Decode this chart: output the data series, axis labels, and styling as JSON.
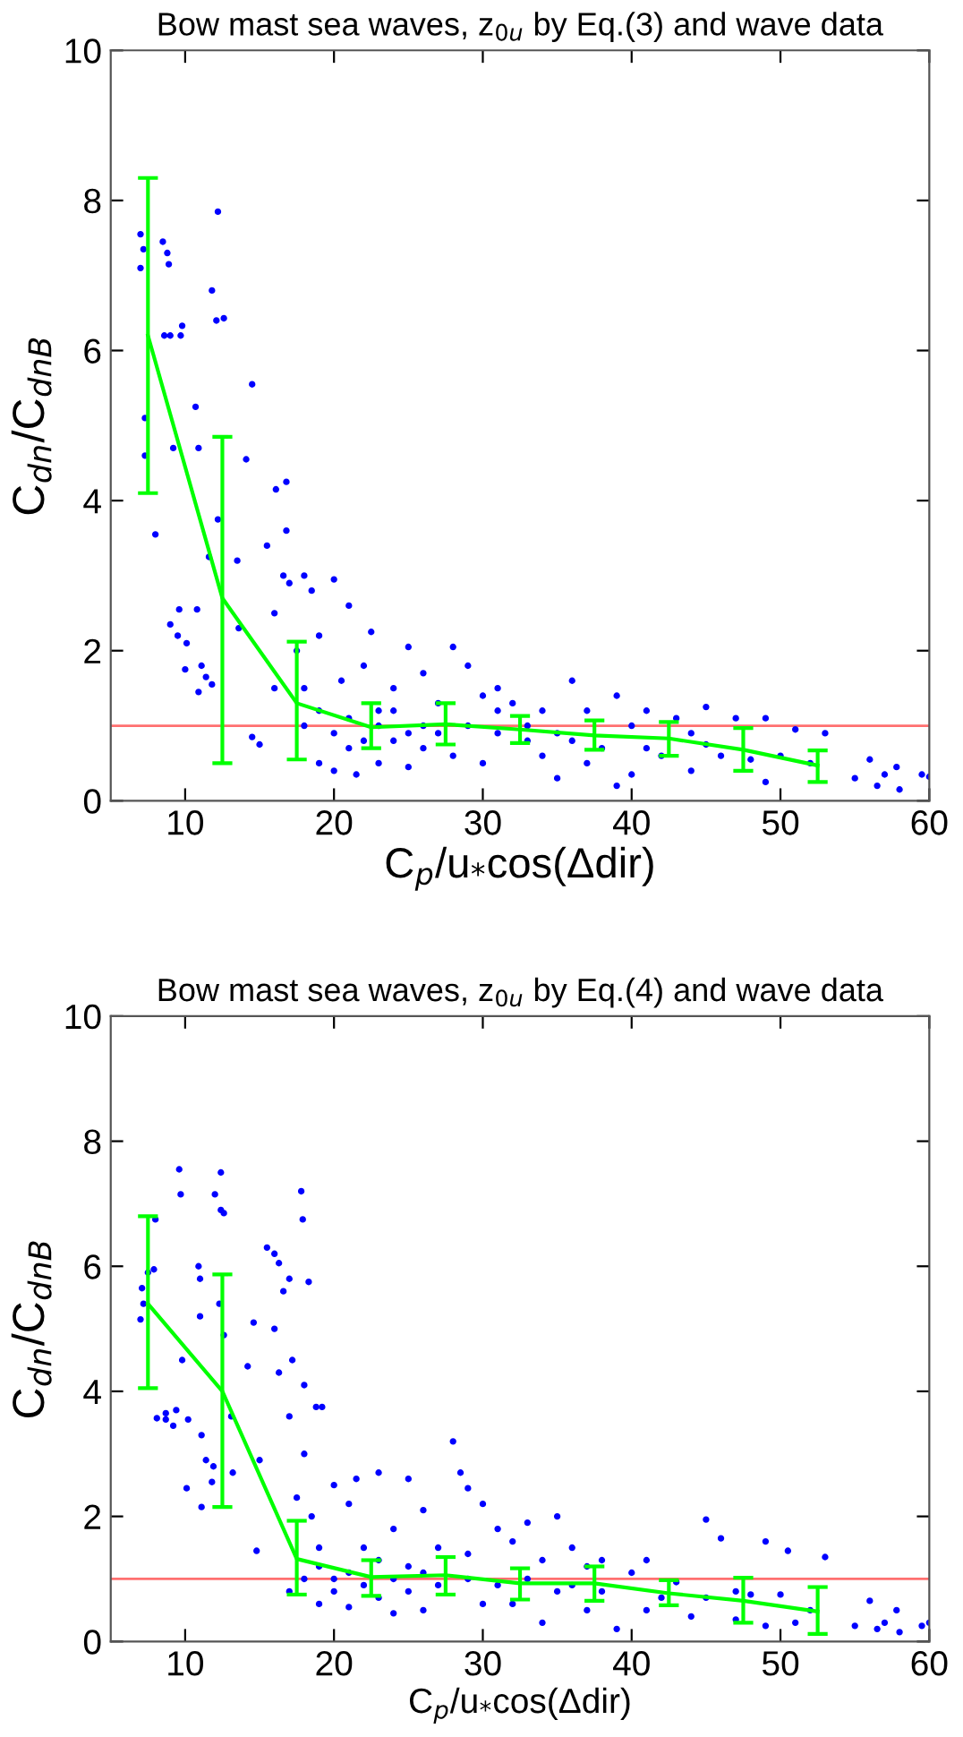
{
  "chart_data": [
    {
      "type": "scatter",
      "title": "Bow mast sea waves, z$_{0u}$ by Eq.(3) and wave data",
      "xlabel": "C$_{p}$/u$_{*}$cos(Δdir)",
      "ylabel": "C$_{dn}$/C$_{dnB}$",
      "xlim": [
        5,
        60
      ],
      "ylim": [
        0,
        10
      ],
      "xticks": [
        10,
        20,
        30,
        40,
        50,
        60
      ],
      "yticks": [
        0,
        2,
        4,
        6,
        8,
        10
      ],
      "grid": false,
      "ref_lines": [
        {
          "axis": "y",
          "value": 1,
          "color": "#ff7070"
        }
      ],
      "series": [
        {
          "color": "#0000ff",
          "marker": "circle",
          "x": [
            7.0,
            7.2,
            7.0,
            7.3,
            7.3,
            8.0,
            8.5,
            8.8,
            8.9,
            8.6,
            9.0,
            9.7,
            9.8,
            9.2,
            9.0,
            9.6,
            9.5,
            10.1,
            10.0,
            10.7,
            10.9,
            10.8,
            10.9,
            11.1,
            11.4,
            11.8,
            11.8,
            12.1,
            12.2,
            12.6,
            11.6,
            12.2,
            13.5,
            14.1,
            14.5,
            13.6,
            14.5,
            15,
            15.5,
            16.1,
            16.8,
            16.8,
            16.6,
            16,
            16,
            17,
            17.5,
            18,
            18,
            18.5,
            19,
            19,
            20,
            20,
            20.5,
            21,
            21,
            21.5,
            22,
            22.5,
            23,
            23,
            24,
            24,
            25,
            25,
            26,
            26,
            27,
            28,
            28,
            29,
            30,
            30,
            31,
            31,
            32,
            33,
            34,
            35,
            35,
            36,
            37,
            38,
            39,
            39,
            40,
            40,
            41,
            42,
            43,
            44,
            45,
            45,
            46,
            47,
            48,
            49,
            49,
            50,
            51,
            52,
            53,
            55,
            56,
            56.5,
            57,
            57.8,
            58,
            59.5,
            60,
            18,
            19,
            20,
            21,
            22,
            23,
            24,
            25,
            26,
            27,
            29,
            31,
            33,
            34,
            36,
            37,
            41,
            44
          ],
          "values": [
            7.55,
            7.35,
            7.1,
            5.1,
            4.6,
            3.55,
            7.45,
            7.3,
            7.15,
            6.2,
            6.2,
            6.2,
            6.33,
            4.7,
            2.35,
            2.55,
            2.2,
            2.1,
            1.75,
            5.25,
            4.7,
            2.55,
            1.45,
            1.8,
            1.65,
            1.55,
            6.8,
            6.4,
            7.85,
            6.43,
            3.25,
            3.75,
            3.2,
            4.55,
            5.55,
            2.3,
            0.85,
            0.75,
            3.4,
            4.15,
            4.25,
            3.6,
            3.0,
            2.5,
            1.5,
            2.9,
            2.0,
            3.0,
            1.5,
            2.8,
            2.2,
            0.5,
            2.95,
            0.4,
            1.6,
            2.6,
            0.7,
            0.35,
            1.8,
            2.25,
            1.2,
            0.5,
            1.5,
            0.8,
            2.05,
            0.45,
            1.7,
            1.0,
            1.3,
            2.05,
            0.6,
            1.8,
            1.4,
            0.5,
            1.5,
            0.9,
            1.3,
            0.8,
            1.2,
            0.3,
            0.9,
            1.6,
            1.2,
            0.7,
            1.4,
            0.2,
            0.35,
            1.0,
            1.2,
            0.6,
            1.1,
            0.9,
            1.25,
            0.75,
            0.6,
            1.1,
            0.55,
            1.1,
            0.25,
            0.6,
            0.95,
            0.5,
            0.9,
            0.3,
            0.55,
            0.2,
            0.35,
            0.45,
            0.15,
            0.35,
            0.32,
            1.0,
            1.2,
            0.9,
            1.1,
            0.8,
            1.0,
            1.2,
            0.9,
            0.7,
            0.9,
            1.0,
            1.2,
            1.0,
            0.6,
            0.8,
            0.5,
            0.7,
            0.4
          ]
        },
        {
          "type": "line",
          "color": "#00ff00",
          "marker": "none",
          "line_style": "solid",
          "x": [
            7.5,
            12.5,
            17.5,
            22.5,
            27.5,
            32.5,
            37.5,
            42.5,
            47.5,
            52.5
          ],
          "values": [
            6.2,
            2.7,
            1.3,
            0.98,
            1.02,
            0.95,
            0.87,
            0.83,
            0.68,
            0.47
          ],
          "errors": [
            [
              4.1,
              8.3
            ],
            [
              0.5,
              4.85
            ],
            [
              0.55,
              2.12
            ],
            [
              0.7,
              1.3
            ],
            [
              0.75,
              1.3
            ],
            [
              0.77,
              1.13
            ],
            [
              0.68,
              1.07
            ],
            [
              0.6,
              1.05
            ],
            [
              0.4,
              0.97
            ],
            [
              0.25,
              0.67
            ]
          ]
        }
      ]
    },
    {
      "type": "scatter",
      "title": "Bow mast sea waves, z$_{0u}$ by Eq.(4) and wave data",
      "xlabel": "C$_{p}$/u$_{*}$cos(Δdir)",
      "ylabel": "C$_{dn}$/C$_{dnB}$",
      "xlim": [
        5,
        60
      ],
      "ylim": [
        0,
        10
      ],
      "xticks": [
        10,
        20,
        30,
        40,
        50,
        60
      ],
      "yticks": [
        0,
        2,
        4,
        6,
        8,
        10
      ],
      "grid": false,
      "ref_lines": [
        {
          "axis": "y",
          "value": 1,
          "color": "#ff7070"
        }
      ],
      "series": [
        {
          "color": "#0000ff",
          "marker": "circle",
          "x": [
            7.0,
            7.1,
            7.2,
            7.5,
            7.9,
            8.0,
            8.1,
            8.7,
            8.7,
            9.2,
            9.6,
            9.7,
            9.8,
            9.4,
            10.2,
            10.1,
            10.9,
            11.0,
            11.0,
            11.1,
            11.1,
            11.4,
            11.8,
            11.9,
            12.0,
            12.3,
            12.4,
            12.4,
            12.6,
            12.6,
            13.1,
            13.2,
            14.2,
            14.6,
            14.8,
            15.0,
            15.5,
            16.0,
            16.3,
            16.0,
            16.3,
            16.6,
            17,
            17.0,
            17.2,
            17.8,
            17.9,
            18,
            18.3,
            18.0,
            18.8,
            19.2,
            17.5,
            17,
            18.5,
            19,
            19,
            20,
            20,
            21,
            21,
            21.5,
            22,
            23,
            23,
            24,
            24,
            25,
            25,
            26,
            26,
            27,
            28,
            28.5,
            29,
            29,
            30,
            30,
            31,
            32,
            32,
            33,
            34,
            34,
            35,
            35,
            36,
            37,
            37,
            38,
            39,
            40,
            41,
            41,
            42,
            43,
            44,
            45,
            45,
            46,
            47,
            47,
            48,
            49,
            49,
            50,
            50.5,
            51,
            52,
            53,
            55,
            56,
            56.5,
            57,
            57.8,
            58,
            59.5,
            60,
            18,
            19,
            20,
            21,
            22,
            23,
            24,
            25,
            26,
            27,
            29,
            31,
            33,
            36,
            38
          ],
          "values": [
            5.15,
            5.65,
            5.4,
            5.9,
            5.95,
            6.75,
            3.57,
            3.65,
            3.55,
            3.45,
            7.55,
            7.15,
            4.5,
            3.7,
            3.55,
            2.45,
            6.0,
            5.2,
            5.8,
            2.15,
            3.3,
            2.9,
            2.55,
            2.8,
            7.15,
            5.4,
            7.5,
            6.9,
            6.85,
            4.9,
            3.6,
            2.7,
            4.4,
            5.1,
            1.45,
            2.9,
            6.3,
            6.2,
            6.05,
            5.0,
            4.3,
            5.6,
            5.8,
            3.6,
            4.5,
            7.2,
            6.75,
            4.1,
            5.75,
            3.0,
            3.75,
            3.75,
            2.3,
            0.8,
            2.0,
            1.5,
            0.6,
            2.5,
            1.0,
            2.2,
            0.55,
            2.6,
            1.5,
            2.7,
            0.7,
            1.8,
            0.45,
            2.6,
            1.2,
            2.1,
            0.5,
            1.5,
            3.2,
            2.7,
            2.45,
            1.4,
            2.2,
            0.6,
            1.8,
            1.6,
            0.6,
            1.9,
            1.3,
            0.3,
            2.0,
            0.8,
            1.5,
            1.2,
            0.5,
            1.3,
            0.2,
            1.1,
            1.3,
            0.5,
            0.7,
            0.95,
            0.4,
            1.95,
            0.7,
            1.65,
            0.8,
            0.35,
            0.75,
            1.6,
            0.25,
            0.75,
            1.45,
            0.3,
            0.5,
            1.35,
            0.25,
            0.65,
            0.2,
            0.3,
            0.5,
            0.15,
            0.25,
            0.3,
            1.0,
            1.2,
            0.8,
            1.1,
            0.9,
            1.3,
            1.0,
            0.8,
            1.1,
            0.9,
            1.0,
            0.9,
            1.0,
            0.9,
            0.8
          ]
        },
        {
          "type": "line",
          "color": "#00ff00",
          "marker": "none",
          "line_style": "solid",
          "x": [
            7.5,
            12.5,
            17.5,
            22.5,
            27.5,
            32.5,
            37.5,
            42.5,
            47.5,
            52.5
          ],
          "values": [
            5.4,
            4.0,
            1.32,
            1.03,
            1.06,
            0.93,
            0.93,
            0.77,
            0.65,
            0.48
          ],
          "errors": [
            [
              4.05,
              6.8
            ],
            [
              2.15,
              5.87
            ],
            [
              0.75,
              1.93
            ],
            [
              0.73,
              1.3
            ],
            [
              0.75,
              1.35
            ],
            [
              0.67,
              1.17
            ],
            [
              0.65,
              1.2
            ],
            [
              0.58,
              0.98
            ],
            [
              0.3,
              1.02
            ],
            [
              0.12,
              0.87
            ]
          ]
        }
      ]
    }
  ]
}
